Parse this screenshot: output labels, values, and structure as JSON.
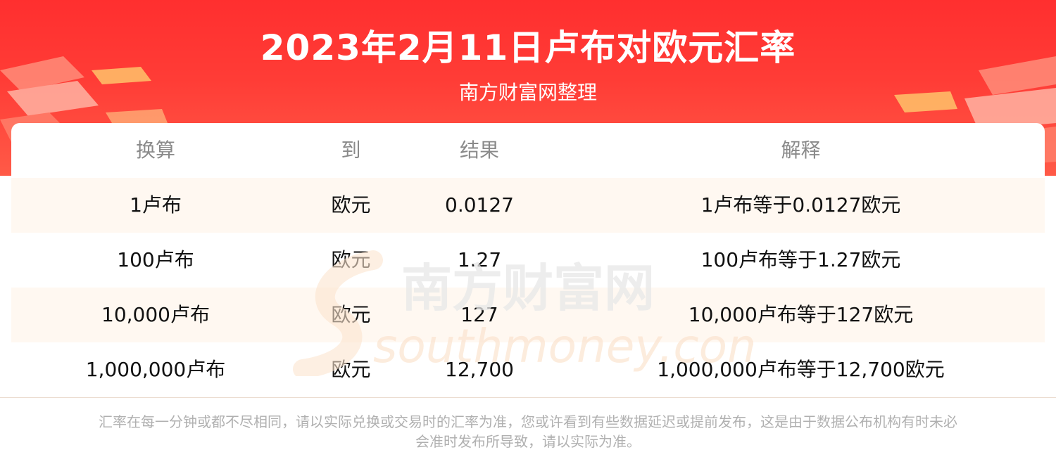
{
  "header": {
    "title": "2023年2月11日卢布对欧元汇率",
    "subtitle": "南方财富网整理"
  },
  "table": {
    "columns": [
      "换算",
      "到",
      "结果",
      "解释"
    ],
    "rows": [
      [
        "1卢布",
        "欧元",
        "0.0127",
        "1卢布等于0.0127欧元"
      ],
      [
        "100卢布",
        "欧元",
        "1.27",
        "100卢布等于1.27欧元"
      ],
      [
        "10,000卢布",
        "欧元",
        "127",
        "10,000卢布等于127欧元"
      ],
      [
        "1,000,000卢布",
        "欧元",
        "12,700",
        "1,000,000卢布等于12,700欧元"
      ]
    ]
  },
  "watermark": {
    "cn": "南方财富网",
    "en": "southmoney.com"
  },
  "footer": {
    "note_line1": "汇率在每一分钟或都不尽相同，请以实际兑换或交易时的汇率为准，您或许看到有些数据延迟或提前发布，这是由于数据公布机构有时未必",
    "note_line2": "会准时发布所导致，请以实际为准。"
  },
  "colors": {
    "banner": "#ff3c36",
    "row_alt": "#fff8f1",
    "header_text": "#8a8a8a"
  }
}
